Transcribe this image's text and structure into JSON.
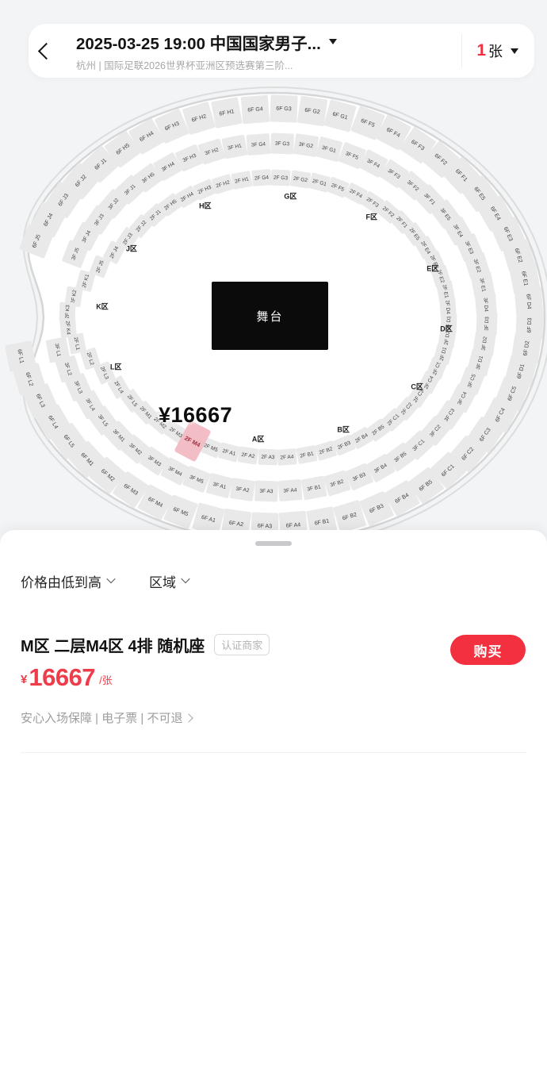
{
  "header": {
    "title": "2025-03-25 19:00 中国国家男子...",
    "subtitle": "杭州 | 国际足联2026世界杯亚洲区预选赛第三阶...",
    "ticket_count": "1",
    "ticket_unit": "张"
  },
  "seatmap": {
    "stage_label": "舞台",
    "price_marker": "¥16667",
    "selected_section": "2F M4",
    "region_labels": [
      "A区",
      "B区",
      "C区",
      "D区",
      "E区",
      "F区",
      "G区",
      "H区",
      "J区",
      "K区",
      "L区"
    ],
    "rings": [
      {
        "name": "2F",
        "labels": [
          "2F A1",
          "2F A2",
          "2F A3",
          "2F A4",
          "2F B1",
          "2F B2",
          "2F B3",
          "2F B4",
          "2F B5",
          "2F C1",
          "2F C2",
          "2F C3",
          "2F C4",
          "2F C5",
          "2F D1",
          "2F D2",
          "2F D3",
          "2F D4",
          "2F E1",
          "2F E2",
          "2F E3",
          "2F E4",
          "2F E5",
          "2F F1",
          "2F F2",
          "2F F3",
          "2F F4",
          "2F F5",
          "2F G1",
          "2F G2",
          "2F G3",
          "2F G4",
          "2F H1",
          "2F H2",
          "2F H3",
          "2F H4",
          "2F H5",
          "2F J1",
          "2F J2",
          "2F J3",
          "2F J4",
          "2F J5",
          "2F K1",
          "2F K2",
          "2F K3",
          "2F K4",
          "2F L1",
          "2F L2",
          "2F L3",
          "2F L4",
          "2F L5",
          "2F M1",
          "2F M2",
          "2F M3",
          "2F M4",
          "2F M5"
        ]
      },
      {
        "name": "3F",
        "labels": [
          "3F A1",
          "3F A2",
          "3F A3",
          "3F A4",
          "3F B1",
          "3F B2",
          "3F B3",
          "3F B4",
          "3F B5",
          "3F C1",
          "3F C2",
          "3F C3",
          "3F C4",
          "3F C5",
          "3F D1",
          "3F D2",
          "3F D3",
          "3F D4",
          "3F E1",
          "3F E2",
          "3F E3",
          "3F E4",
          "3F E5",
          "3F F1",
          "3F F2",
          "3F F3",
          "3F F4",
          "3F F5",
          "3F G1",
          "3F G2",
          "3F G3",
          "3F G4",
          "3F H1",
          "3F H2",
          "3F H3",
          "3F H4",
          "3F H5",
          "3F J1",
          "3F J2",
          "3F J3",
          "3F J4",
          "3F J5",
          "3F L1",
          "3F L2",
          "3F L3",
          "3F L4",
          "3F L5",
          "3F M1",
          "3F M2",
          "3F M3",
          "3F M4",
          "3F M5"
        ]
      },
      {
        "name": "6F",
        "labels": [
          "6F A1",
          "6F A2",
          "6F A3",
          "6F A4",
          "6F B1",
          "6F B2",
          "6F B3",
          "6F B4",
          "6F B5",
          "6F C1",
          "6F C2",
          "6F C3",
          "6F C4",
          "6F C5",
          "6F D1",
          "6F D2",
          "6F D3",
          "6F D4",
          "6F E1",
          "6F E2",
          "6F E3",
          "6F E4",
          "6F E5",
          "6F F1",
          "6F F2",
          "6F F3",
          "6F F4",
          "6F F5",
          "6F G1",
          "6F G2",
          "6F G3",
          "6F G4",
          "6F H1",
          "6F H2",
          "6F H3",
          "6F H4",
          "6F H5",
          "6F J1",
          "6F J2",
          "6F J3",
          "6F J4",
          "6F J5",
          "6F L1",
          "6F L2",
          "6F L3",
          "6F L4",
          "6F L5",
          "6F M1",
          "6F M2",
          "6F M3",
          "6F M4",
          "6F M5"
        ]
      }
    ]
  },
  "filters": {
    "sort_label": "价格由低到高",
    "area_label": "区域"
  },
  "listing": {
    "title": "M区 二层M4区 4排 随机座",
    "badge": "认证商家",
    "buy_button": "购买",
    "currency": "¥",
    "price": "16667",
    "per_unit": "/张",
    "guarantees": "安心入场保障 | 电子票 | 不可退"
  },
  "colors": {
    "accent_red": "#f2303f",
    "price_red": "#ee3c4b",
    "selected_pink": "#f3bdc5",
    "tile_gray": "#e9e9ea",
    "stage_black": "#0b0b0b"
  }
}
